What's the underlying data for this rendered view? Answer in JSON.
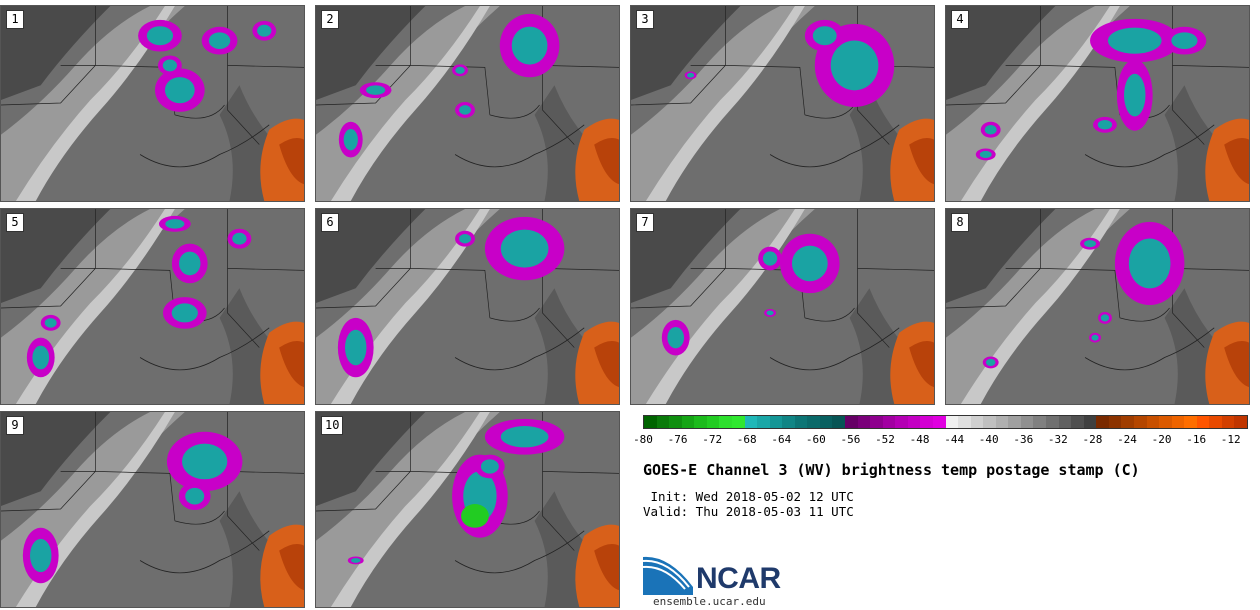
{
  "panels": [
    {
      "label": "1"
    },
    {
      "label": "2"
    },
    {
      "label": "3"
    },
    {
      "label": "4"
    },
    {
      "label": "5"
    },
    {
      "label": "6"
    },
    {
      "label": "7"
    },
    {
      "label": "8"
    },
    {
      "label": "9"
    },
    {
      "label": "10"
    }
  ],
  "colorbar": {
    "ticks": [
      "-80",
      "-76",
      "-72",
      "-68",
      "-64",
      "-60",
      "-56",
      "-52",
      "-48",
      "-44",
      "-40",
      "-36",
      "-32",
      "-28",
      "-24",
      "-20",
      "-16",
      "-12"
    ],
    "min": -80,
    "max": -10,
    "colors": [
      "#006400",
      "#0a7a0a",
      "#0f8f0f",
      "#15a515",
      "#1cbb1c",
      "#22cc22",
      "#2de02d",
      "#30e830",
      "#1fb8b8",
      "#1aa7a7",
      "#149696",
      "#108585",
      "#0c7575",
      "#0a6a6a",
      "#086060",
      "#075555",
      "#660066",
      "#7a007a",
      "#8e008e",
      "#a200a2",
      "#b400b4",
      "#c400c4",
      "#d400d4",
      "#e000e0",
      "#f0f0f0",
      "#e0e0e0",
      "#d0d0d0",
      "#c0c0c0",
      "#b0b0b0",
      "#a0a0a0",
      "#909090",
      "#808080",
      "#707070",
      "#606060",
      "#505050",
      "#404040",
      "#7a2a00",
      "#8c3300",
      "#a03d00",
      "#b44600",
      "#c85000",
      "#dc5a00",
      "#ee6400",
      "#ff6e00",
      "#ff5500",
      "#e84a00",
      "#d23f00",
      "#c03500"
    ]
  },
  "title": "GOES-E Channel 3 (WV) brightness temp postage stamp (C)",
  "init": " Init: Wed 2018-05-02 12 UTC",
  "valid": "Valid: Thu 2018-05-03 11 UTC",
  "logo": {
    "text": "NCAR",
    "site": "ensemble.ucar.edu"
  },
  "colors": {
    "background_gray": "#777777",
    "moist_cyan": "#1aa3a3",
    "cold_magenta": "#c800c8",
    "warm_orange": "#d8601a"
  }
}
